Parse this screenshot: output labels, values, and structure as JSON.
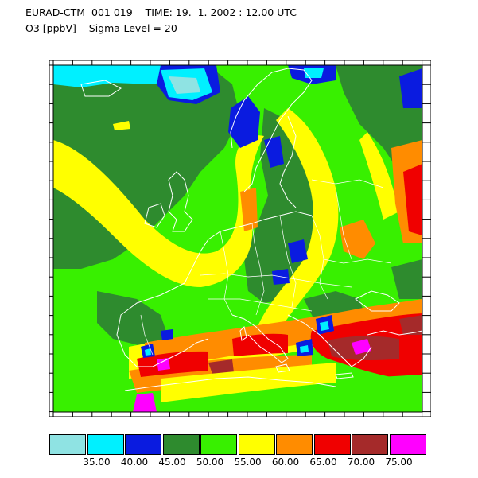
{
  "header": {
    "line1": "EURAD-CTM  001 019    TIME: 19.  1. 2002 : 12.00 UTC",
    "line2": "O3 [ppbV]    Sigma-Level = 20"
  },
  "legend": {
    "colors": [
      "#8fe3e3",
      "#00f0ff",
      "#0a1be0",
      "#2e8b2e",
      "#38f000",
      "#ffff00",
      "#ff8c00",
      "#f00000",
      "#a52a2a",
      "#ff00ff"
    ],
    "labels": [
      "35.00",
      "40.00",
      "45.00",
      "50.00",
      "55.00",
      "60.00",
      "65.00",
      "70.00",
      "75.00"
    ]
  },
  "palette": {
    "light_cyan": "#8fe3e3",
    "cyan": "#00f0ff",
    "blue": "#0a1be0",
    "dark_green": "#2e8b2e",
    "green": "#38f000",
    "yellow": "#ffff00",
    "orange": "#ff8c00",
    "red": "#f00000",
    "brown": "#a52a2a",
    "magenta": "#ff00ff",
    "coastline": "#ffffff"
  }
}
